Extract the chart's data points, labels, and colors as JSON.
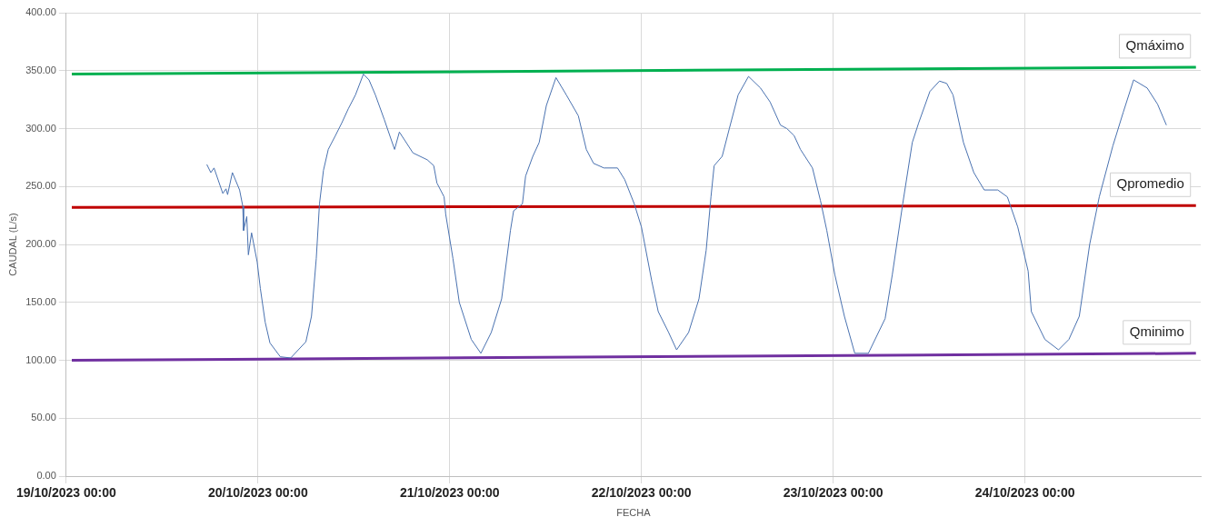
{
  "chart_data": {
    "type": "line",
    "xlabel": "FECHA",
    "ylabel": "CAUDAL (L/s)",
    "xlim": [
      "2023-10-19T00:00",
      "2023-10-24T22:00"
    ],
    "xticks": [
      {
        "value": "2023-10-19T00:00",
        "label": "19/10/2023 00:00"
      },
      {
        "value": "2023-10-20T00:00",
        "label": "20/10/2023 00:00"
      },
      {
        "value": "2023-10-21T00:00",
        "label": "21/10/2023 00:00"
      },
      {
        "value": "2023-10-22T00:00",
        "label": "22/10/2023 00:00"
      },
      {
        "value": "2023-10-23T00:00",
        "label": "23/10/2023 00:00"
      },
      {
        "value": "2023-10-24T00:00",
        "label": "24/10/2023 00:00"
      }
    ],
    "ylim": [
      0,
      400
    ],
    "yticks": [
      {
        "value": 0,
        "label": "0.00"
      },
      {
        "value": 50,
        "label": "50.00"
      },
      {
        "value": 100,
        "label": "100.00"
      },
      {
        "value": 150,
        "label": "150.00"
      },
      {
        "value": 200,
        "label": "200.00"
      },
      {
        "value": 250,
        "label": "250.00"
      },
      {
        "value": 300,
        "label": "300.00"
      },
      {
        "value": 350,
        "label": "350.00"
      },
      {
        "value": 400,
        "label": "400.00"
      }
    ],
    "grid": true,
    "legend": false,
    "marker": "none",
    "line_style": "solid",
    "series": [
      {
        "color": "#4a72b0",
        "x": [
          "2023-10-19T17:36",
          "2023-10-19T18:06",
          "2023-10-19T18:30",
          "2023-10-19T19:36",
          "2023-10-19T20:00",
          "2023-10-19T20:12",
          "2023-10-19T20:48",
          "2023-10-19T21:42",
          "2023-10-19T22:06",
          "2023-10-19T22:12",
          "2023-10-19T22:36",
          "2023-10-19T22:48",
          "2023-10-19T23:12",
          "2023-10-19T23:54",
          "2023-10-20T00:18",
          "2023-10-20T00:54",
          "2023-10-20T01:30",
          "2023-10-20T02:48",
          "2023-10-20T04:06",
          "2023-10-20T06:00",
          "2023-10-20T06:42",
          "2023-10-20T07:18",
          "2023-10-20T07:42",
          "2023-10-20T08:12",
          "2023-10-20T08:48",
          "2023-10-20T09:42",
          "2023-10-20T10:30",
          "2023-10-20T11:18",
          "2023-10-20T12:12",
          "2023-10-20T13:12",
          "2023-10-20T13:54",
          "2023-10-20T14:42",
          "2023-10-20T15:48",
          "2023-10-20T17:06",
          "2023-10-20T17:42",
          "2023-10-20T19:24",
          "2023-10-20T21:12",
          "2023-10-20T22:00",
          "2023-10-20T22:24",
          "2023-10-20T23:18",
          "2023-10-20T23:30",
          "2023-10-21T00:24",
          "2023-10-21T01:12",
          "2023-10-21T02:42",
          "2023-10-21T03:54",
          "2023-10-21T05:12",
          "2023-10-21T06:30",
          "2023-10-21T07:36",
          "2023-10-21T08:00",
          "2023-10-21T09:06",
          "2023-10-21T09:30",
          "2023-10-21T10:24",
          "2023-10-21T11:12",
          "2023-10-21T12:06",
          "2023-10-21T13:18",
          "2023-10-21T14:36",
          "2023-10-21T16:06",
          "2023-10-21T17:06",
          "2023-10-21T18:00",
          "2023-10-21T19:18",
          "2023-10-21T21:00",
          "2023-10-21T21:54",
          "2023-10-21T23:06",
          "2023-10-22T00:00",
          "2023-10-22T01:18",
          "2023-10-22T02:06",
          "2023-10-22T03:24",
          "2023-10-22T04:24",
          "2023-10-22T05:54",
          "2023-10-22T07:12",
          "2023-10-22T08:06",
          "2023-10-22T08:42",
          "2023-10-22T09:06",
          "2023-10-22T10:06",
          "2023-10-22T11:00",
          "2023-10-22T12:06",
          "2023-10-22T13:24",
          "2023-10-22T14:54",
          "2023-10-22T16:06",
          "2023-10-22T17:24",
          "2023-10-22T18:12",
          "2023-10-22T19:06",
          "2023-10-22T19:54",
          "2023-10-22T21:24",
          "2023-10-22T22:24",
          "2023-10-22T23:12",
          "2023-10-23T00:12",
          "2023-10-23T01:24",
          "2023-10-23T02:42",
          "2023-10-23T04:24",
          "2023-10-23T06:30",
          "2023-10-23T07:24",
          "2023-10-23T08:42",
          "2023-10-23T09:54",
          "2023-10-23T10:42",
          "2023-10-23T12:06",
          "2023-10-23T13:18",
          "2023-10-23T14:12",
          "2023-10-23T15:00",
          "2023-10-23T16:18",
          "2023-10-23T17:36",
          "2023-10-23T18:54",
          "2023-10-23T20:36",
          "2023-10-23T21:48",
          "2023-10-23T23:06",
          "2023-10-24T00:24",
          "2023-10-24T00:48",
          "2023-10-24T02:30",
          "2023-10-24T04:12",
          "2023-10-24T05:30",
          "2023-10-24T06:48",
          "2023-10-24T08:06",
          "2023-10-24T09:18",
          "2023-10-24T11:00",
          "2023-10-24T12:18",
          "2023-10-24T13:36",
          "2023-10-24T15:18",
          "2023-10-24T16:36",
          "2023-10-24T17:42"
        ],
        "values": [
          269,
          262,
          266,
          244,
          248,
          243,
          262,
          247,
          233,
          212,
          224,
          191,
          210,
          185,
          162,
          133,
          115,
          103,
          102,
          116,
          138,
          188,
          235,
          264,
          282,
          294,
          305,
          317,
          329,
          347,
          342,
          329,
          308,
          282,
          297,
          279,
          273,
          268,
          253,
          241,
          226,
          188,
          150,
          118,
          106,
          124,
          153,
          212,
          229,
          235,
          259,
          276,
          288,
          320,
          344,
          329,
          311,
          282,
          270,
          266,
          266,
          256,
          235,
          215,
          168,
          142,
          124,
          109,
          124,
          153,
          195,
          241,
          268,
          276,
          300,
          329,
          345,
          335,
          323,
          303,
          300,
          294,
          282,
          266,
          238,
          212,
          174,
          138,
          106,
          106,
          136,
          174,
          235,
          288,
          305,
          332,
          341,
          339,
          329,
          288,
          262,
          247,
          247,
          241,
          215,
          177,
          142,
          118,
          109,
          118,
          138,
          200,
          241,
          285,
          314,
          342,
          335,
          321,
          303
        ]
      },
      {
        "name": "Qmáximo",
        "color": "#00b050",
        "x": [
          "2023-10-19T00:42",
          "2023-10-24T21:24"
        ],
        "values": [
          347,
          353
        ]
      },
      {
        "name": "Qpromedio",
        "color": "#c00000",
        "x": [
          "2023-10-19T00:42",
          "2023-10-24T21:24"
        ],
        "values": [
          232,
          233.5
        ]
      },
      {
        "name": "Qminimo",
        "color": "#7030a0",
        "x": [
          "2023-10-19T00:42",
          "2023-10-24T21:24"
        ],
        "values": [
          100,
          106
        ]
      }
    ]
  }
}
